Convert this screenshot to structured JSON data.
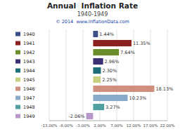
{
  "chart_data": {
    "type": "bar",
    "orientation": "horizontal",
    "title": "Annual  Inflation Rate",
    "subtitle": "1940-1949",
    "annotations": [
      "© 2014  www.InflationData.com"
    ],
    "categories": [
      "1940",
      "1941",
      "1942",
      "1943",
      "1944",
      "1945",
      "1946",
      "1947",
      "1948",
      "1949"
    ],
    "values": [
      1.44,
      11.35,
      7.64,
      2.96,
      2.3,
      2.25,
      18.13,
      10.23,
      3.27,
      -2.06
    ],
    "value_labels": [
      "1.44%",
      "11.35%",
      "7.64%",
      "2.96%",
      "2.30%",
      "2.25%",
      "18.13%",
      "10.23%",
      "3.27%",
      "-2.06%"
    ],
    "colors": [
      "#3a4f8a",
      "#8b2020",
      "#6b8c2a",
      "#3d2f75",
      "#1e6e7a",
      "#c8d080",
      "#d09080",
      "#88aac8",
      "#50a0a0",
      "#b898c8"
    ],
    "xlim": [
      -13.0,
      22.0
    ],
    "xticks": [
      {
        "value": -13.0,
        "label": "-13.00%"
      },
      {
        "value": -8.0,
        "label": "-8.00%"
      },
      {
        "value": -3.0,
        "label": "-3.00%"
      },
      {
        "value": 2.0,
        "label": "2.00%"
      },
      {
        "value": 7.0,
        "label": "7.00%"
      },
      {
        "value": 12.0,
        "label": "12.00%"
      },
      {
        "value": 17.0,
        "label": "17.00%"
      },
      {
        "value": 22.0,
        "label": "22.00%"
      }
    ],
    "grid": true,
    "data_labels": true,
    "tick_labels": "x",
    "legend": "left"
  }
}
